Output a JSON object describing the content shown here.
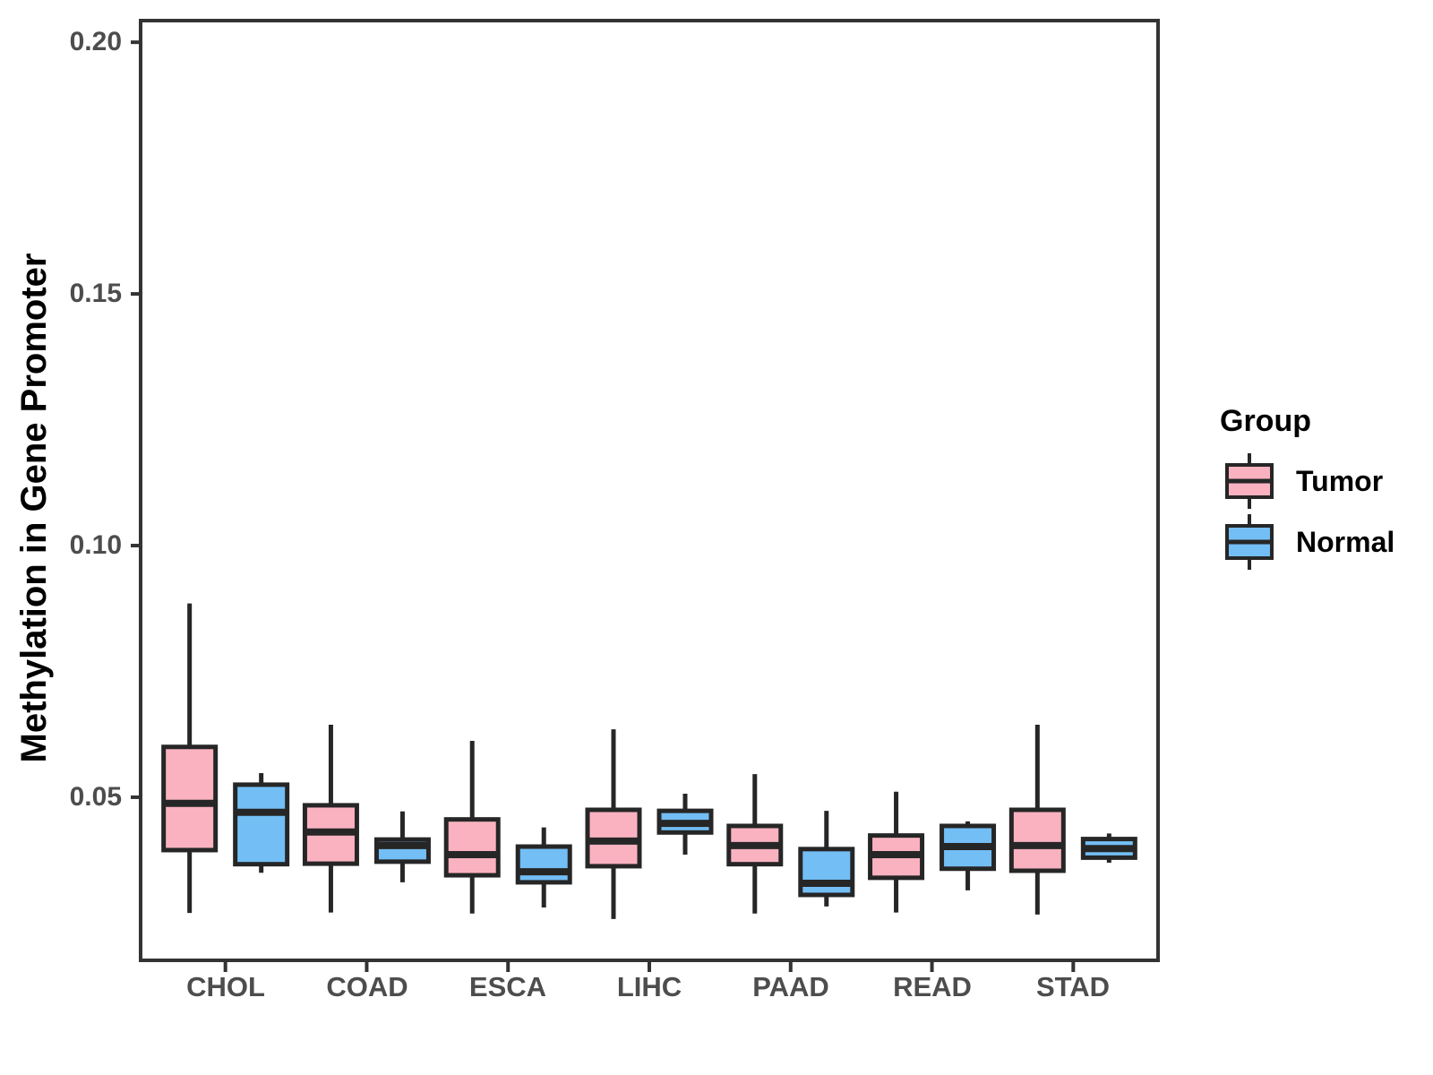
{
  "style": {
    "tumor_fill": "#FAB2C1",
    "normal_fill": "#73BEF5",
    "box_stroke": "#262626",
    "panel_border": "#333333",
    "axis_text_color": "#4D4D4D",
    "title_text_color": "#000000",
    "background": "#FFFFFF"
  },
  "chart_data": {
    "type": "boxplot",
    "title": "",
    "xlabel": "",
    "ylabel": "Methylation in Gene Promoter",
    "categories": [
      "CHOL",
      "COAD",
      "ESCA",
      "LIHC",
      "PAAD",
      "READ",
      "STAD"
    ],
    "ylim": [
      0.0176,
      0.2043
    ],
    "yticks": [
      0.05,
      0.1,
      0.15,
      0.2
    ],
    "ytick_labels": [
      "0.05",
      "0.10",
      "0.15",
      "0.20"
    ],
    "grid": false,
    "legend": {
      "position": "right",
      "title": "Group"
    },
    "series": [
      {
        "name": "Tumor",
        "fill": "#FAB2C1",
        "boxes": [
          {
            "category": "CHOL",
            "whisker_low": 0.027,
            "q1": 0.0395,
            "median": 0.0488,
            "q3": 0.06,
            "whisker_high": 0.0885
          },
          {
            "category": "COAD",
            "whisker_low": 0.0271,
            "q1": 0.0368,
            "median": 0.0431,
            "q3": 0.0484,
            "whisker_high": 0.0644
          },
          {
            "category": "ESCA",
            "whisker_low": 0.0269,
            "q1": 0.0345,
            "median": 0.0386,
            "q3": 0.0456,
            "whisker_high": 0.0612
          },
          {
            "category": "LIHC",
            "whisker_low": 0.0258,
            "q1": 0.0363,
            "median": 0.0413,
            "q3": 0.0475,
            "whisker_high": 0.0635
          },
          {
            "category": "PAAD",
            "whisker_low": 0.0269,
            "q1": 0.0367,
            "median": 0.0404,
            "q3": 0.0443,
            "whisker_high": 0.0546
          },
          {
            "category": "READ",
            "whisker_low": 0.0271,
            "q1": 0.034,
            "median": 0.0386,
            "q3": 0.0424,
            "whisker_high": 0.0511
          },
          {
            "category": "STAD",
            "whisker_low": 0.0267,
            "q1": 0.0354,
            "median": 0.0404,
            "q3": 0.0475,
            "whisker_high": 0.0644
          }
        ]
      },
      {
        "name": "Normal",
        "fill": "#73BEF5",
        "boxes": [
          {
            "category": "CHOL",
            "whisker_low": 0.035,
            "q1": 0.0367,
            "median": 0.047,
            "q3": 0.0525,
            "whisker_high": 0.0548
          },
          {
            "category": "COAD",
            "whisker_low": 0.0331,
            "q1": 0.0372,
            "median": 0.0404,
            "q3": 0.0416,
            "whisker_high": 0.0472
          },
          {
            "category": "ESCA",
            "whisker_low": 0.0281,
            "q1": 0.0331,
            "median": 0.0352,
            "q3": 0.0402,
            "whisker_high": 0.044
          },
          {
            "category": "LIHC",
            "whisker_low": 0.0386,
            "q1": 0.043,
            "median": 0.0448,
            "q3": 0.0473,
            "whisker_high": 0.0507
          },
          {
            "category": "PAAD",
            "whisker_low": 0.0283,
            "q1": 0.0306,
            "median": 0.0329,
            "q3": 0.0397,
            "whisker_high": 0.0473
          },
          {
            "category": "READ",
            "whisker_low": 0.0315,
            "q1": 0.0358,
            "median": 0.0402,
            "q3": 0.0443,
            "whisker_high": 0.0452
          },
          {
            "category": "STAD",
            "whisker_low": 0.037,
            "q1": 0.038,
            "median": 0.0398,
            "q3": 0.0417,
            "whisker_high": 0.0428
          }
        ]
      }
    ]
  }
}
